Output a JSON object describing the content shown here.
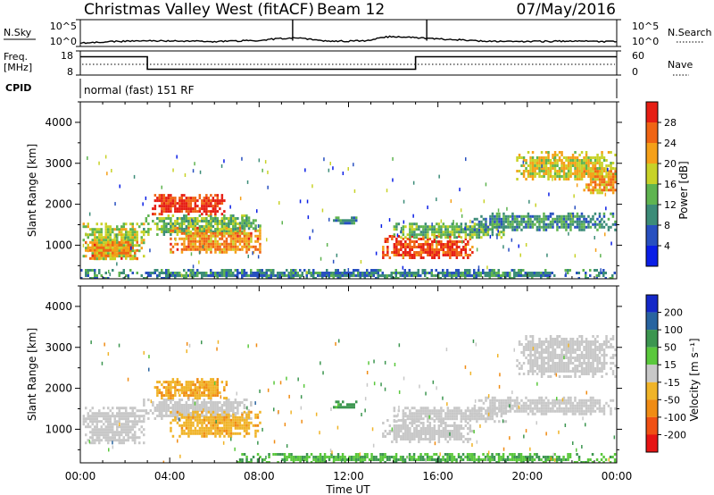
{
  "header": {
    "station": "Christmas Valley West (fitACF)",
    "beam": "Beam 12",
    "date": "07/May/2016"
  },
  "noise_panel": {
    "left_label": "N.Sky",
    "right_label": "N.Search",
    "left_ticks": [
      "10^5",
      "10^0"
    ],
    "right_ticks": [
      "10^5",
      "10^0"
    ]
  },
  "freq_panel": {
    "left_label_1": "Freq.",
    "left_label_2": "[MHz]",
    "right_label": "Nave",
    "left_ticks": [
      "18",
      "8"
    ],
    "right_ticks": [
      "60",
      "0"
    ]
  },
  "cpid": {
    "label": "CPID",
    "text": "normal (fast) 151 RF"
  },
  "power_panel": {
    "ylabel": "Slant Range [km]",
    "yticks": [
      "1000",
      "2000",
      "3000",
      "4000"
    ],
    "colorbar_label": "Power [dB]",
    "colorbar_ticks": [
      "4",
      "8",
      "12",
      "16",
      "20",
      "24",
      "28"
    ]
  },
  "velocity_panel": {
    "ylabel": "Slant Range [km]",
    "yticks": [
      "1000",
      "2000",
      "3000",
      "4000"
    ],
    "colorbar_label": "Velocity [m s⁻¹]",
    "colorbar_ticks": [
      "200",
      "100",
      "50",
      "15",
      "-15",
      "-50",
      "-100",
      "-200"
    ]
  },
  "x_axis": {
    "ticks": [
      "00:00",
      "04:00",
      "08:00",
      "12:00",
      "16:00",
      "20:00",
      "00:00"
    ],
    "label": "Time UT"
  },
  "colors": {
    "power_scale": [
      "#0a1ee6",
      "#2850c0",
      "#3c8c78",
      "#5fb450",
      "#c8d228",
      "#f5a019",
      "#f06414",
      "#e61e14"
    ],
    "velocity_scale": [
      "#1428c8",
      "#2864a0",
      "#3c9650",
      "#5ac83c",
      "#c8c8c8",
      "#f0b428",
      "#f08c14",
      "#f05014",
      "#e61414"
    ]
  },
  "chart_data": [
    {
      "type": "line",
      "title": "N.Sky / N.Search",
      "x": [
        0,
        2,
        4,
        6,
        8,
        9.5,
        11,
        13,
        14,
        15.5,
        18,
        20,
        22,
        24
      ],
      "series": [
        {
          "values": [
            4,
            10,
            12,
            8,
            14,
            40,
            9,
            12,
            80,
            30,
            10,
            9,
            10,
            8
          ]
        }
      ],
      "ylim": [
        1,
        100000
      ]
    },
    {
      "type": "line",
      "title": "Freq. [MHz]",
      "x": [
        0,
        3,
        3,
        15,
        15,
        24
      ],
      "series": [
        {
          "values": [
            15.6,
            15.6,
            10.4,
            10.4,
            15.6,
            15.6
          ]
        }
      ],
      "ylim": [
        8,
        18
      ]
    },
    {
      "type": "heatmap",
      "title": "Power [dB]",
      "xlim": [
        0,
        24
      ],
      "ylim": [
        180,
        4500
      ],
      "clim": [
        0,
        30
      ],
      "regions": [
        {
          "t": [
            0.1,
            2.8
          ],
          "r": [
            650,
            1550
          ],
          "v": 16
        },
        {
          "t": [
            0.2,
            2.5
          ],
          "r": [
            700,
            1100
          ],
          "v": 22
        },
        {
          "t": [
            2.8,
            7.6
          ],
          "r": [
            1250,
            1750
          ],
          "v": 14
        },
        {
          "t": [
            3.2,
            6.5
          ],
          "r": [
            1750,
            2250
          ],
          "v": 27
        },
        {
          "t": [
            4.0,
            8.0
          ],
          "r": [
            850,
            1450
          ],
          "v": 22
        },
        {
          "t": [
            7.0,
            8.0
          ],
          "r": [
            1400,
            1700
          ],
          "v": 11
        },
        {
          "t": [
            11.3,
            12.3
          ],
          "r": [
            1550,
            1700
          ],
          "v": 9
        },
        {
          "t": [
            13.5,
            17.5
          ],
          "r": [
            700,
            1250
          ],
          "v": 26
        },
        {
          "t": [
            14.0,
            19.0
          ],
          "r": [
            1200,
            1550
          ],
          "v": 13
        },
        {
          "t": [
            17.5,
            24.0
          ],
          "r": [
            1400,
            1800
          ],
          "v": 10
        },
        {
          "t": [
            19.5,
            24.0
          ],
          "r": [
            2600,
            3300
          ],
          "v": 18
        },
        {
          "t": [
            22.5,
            24.0
          ],
          "r": [
            2300,
            2900
          ],
          "v": 21
        },
        {
          "t": [
            0.0,
            24.0
          ],
          "r": [
            200,
            420
          ],
          "v": 9
        }
      ]
    },
    {
      "type": "heatmap",
      "title": "Velocity [m s⁻¹]",
      "xlim": [
        0,
        24
      ],
      "ylim": [
        180,
        4500
      ],
      "clim": [
        -200,
        200
      ],
      "regions": [
        {
          "t": [
            0.1,
            2.8
          ],
          "r": [
            650,
            1550
          ],
          "v": 0
        },
        {
          "t": [
            2.8,
            7.6
          ],
          "r": [
            1250,
            1750
          ],
          "v": 0
        },
        {
          "t": [
            3.2,
            6.5
          ],
          "r": [
            1750,
            2250
          ],
          "v": -45
        },
        {
          "t": [
            4.0,
            8.0
          ],
          "r": [
            850,
            1450
          ],
          "v": -40
        },
        {
          "t": [
            11.3,
            12.3
          ],
          "r": [
            1550,
            1700
          ],
          "v": 40
        },
        {
          "t": [
            13.5,
            17.5
          ],
          "r": [
            700,
            1250
          ],
          "v": 0
        },
        {
          "t": [
            14.0,
            19.0
          ],
          "r": [
            1200,
            1550
          ],
          "v": 0
        },
        {
          "t": [
            17.5,
            24.0
          ],
          "r": [
            1400,
            1800
          ],
          "v": 0
        },
        {
          "t": [
            19.5,
            24.0
          ],
          "r": [
            2300,
            3300
          ],
          "v": 0
        },
        {
          "t": [
            7.0,
            24.0
          ],
          "r": [
            200,
            420
          ],
          "v": 30
        }
      ]
    }
  ]
}
